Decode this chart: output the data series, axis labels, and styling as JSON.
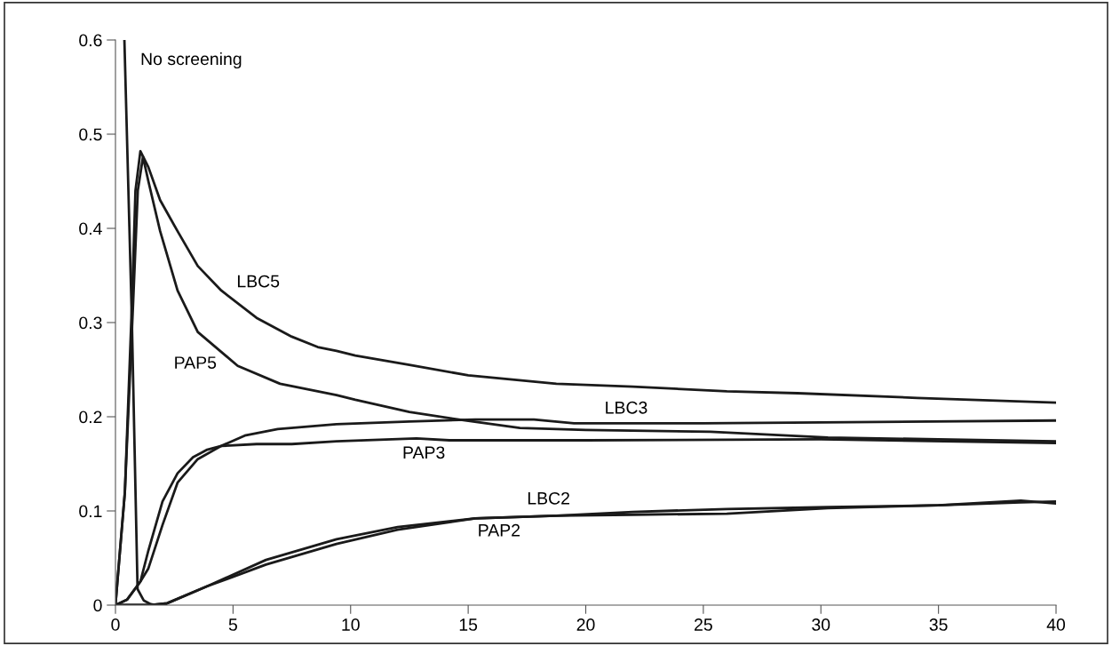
{
  "chart_data": {
    "type": "line",
    "xlim": [
      0,
      40
    ],
    "ylim": [
      0,
      0.6
    ],
    "xticks": [
      0,
      5,
      10,
      15,
      20,
      25,
      30,
      35,
      40
    ],
    "yticks": [
      0,
      0.1,
      0.2,
      0.3,
      0.4,
      0.5,
      0.6
    ],
    "grid": false,
    "legend": false,
    "marker": "none",
    "line_style": "solid",
    "series": [
      {
        "name": "No screening",
        "color": "#1a1a1a",
        "x": [
          0.38,
          0.7,
          0.94,
          1.2,
          1.5,
          1.77,
          2.15
        ],
        "values": [
          0.6,
          0.3,
          0.017,
          0.005,
          0.001,
          0.0,
          0.001
        ]
      },
      {
        "name": "LBC5",
        "color": "#1a1a1a",
        "x": [
          0,
          0.4,
          0.7,
          0.85,
          1.06,
          1.4,
          1.9,
          2.64,
          3.5,
          4.5,
          6,
          7.5,
          8.6,
          9.4,
          10.2,
          12.5,
          15,
          18.75,
          22,
          26,
          29,
          34.1,
          40
        ],
        "values": [
          0,
          0.12,
          0.32,
          0.44,
          0.482,
          0.465,
          0.43,
          0.397,
          0.36,
          0.334,
          0.305,
          0.285,
          0.274,
          0.27,
          0.265,
          0.255,
          0.244,
          0.235,
          0.232,
          0.227,
          0.225,
          0.22,
          0.215
        ]
      },
      {
        "name": "PAP5",
        "color": "#1a1a1a",
        "x": [
          0,
          0.4,
          0.75,
          0.95,
          1.17,
          1.4,
          1.9,
          2.64,
          3.5,
          5.2,
          7,
          9.4,
          10.2,
          12.5,
          14.6,
          17.2,
          20,
          25.3,
          30.3,
          35,
          40
        ],
        "values": [
          0,
          0.12,
          0.32,
          0.44,
          0.476,
          0.45,
          0.397,
          0.334,
          0.29,
          0.254,
          0.235,
          0.223,
          0.218,
          0.205,
          0.197,
          0.188,
          0.186,
          0.184,
          0.178,
          0.176,
          0.174
        ]
      },
      {
        "name": "LBC3",
        "color": "#1a1a1a",
        "x": [
          0,
          0.5,
          1.06,
          1.4,
          2,
          2.64,
          3.5,
          4.5,
          5.5,
          6.9,
          9.4,
          12.5,
          15.3,
          17.8,
          19.5,
          25,
          30,
          40
        ],
        "values": [
          0,
          0.006,
          0.025,
          0.039,
          0.085,
          0.13,
          0.155,
          0.169,
          0.18,
          0.187,
          0.192,
          0.195,
          0.197,
          0.197,
          0.193,
          0.193,
          0.194,
          0.196
        ]
      },
      {
        "name": "PAP3",
        "color": "#1a1a1a",
        "x": [
          0,
          0.5,
          1.06,
          1.4,
          2,
          2.64,
          3.3,
          3.9,
          4.5,
          6,
          7.5,
          9.4,
          12.8,
          14.2,
          20,
          30,
          40
        ],
        "values": [
          0,
          0.006,
          0.025,
          0.058,
          0.11,
          0.14,
          0.157,
          0.165,
          0.169,
          0.171,
          0.171,
          0.174,
          0.177,
          0.175,
          0.175,
          0.176,
          0.172
        ]
      },
      {
        "name": "LBC2",
        "color": "#1a1a1a",
        "x": [
          0,
          1.5,
          2.2,
          3.9,
          6.4,
          9.4,
          12,
          15.3,
          18.75,
          22,
          26,
          30.3,
          35,
          38.5,
          40
        ],
        "values": [
          0,
          0,
          0.002,
          0.02,
          0.048,
          0.07,
          0.083,
          0.092,
          0.095,
          0.099,
          0.102,
          0.104,
          0.106,
          0.109,
          0.11
        ]
      },
      {
        "name": "PAP2",
        "color": "#1a1a1a",
        "x": [
          0.2,
          1.5,
          2.2,
          3.9,
          6.4,
          9.4,
          12,
          15.3,
          18.75,
          22,
          26,
          30.3,
          35,
          38.5,
          40
        ],
        "values": [
          0,
          0,
          0.002,
          0.02,
          0.043,
          0.065,
          0.08,
          0.092,
          0.095,
          0.096,
          0.097,
          0.103,
          0.106,
          0.111,
          0.108
        ]
      }
    ]
  }
}
